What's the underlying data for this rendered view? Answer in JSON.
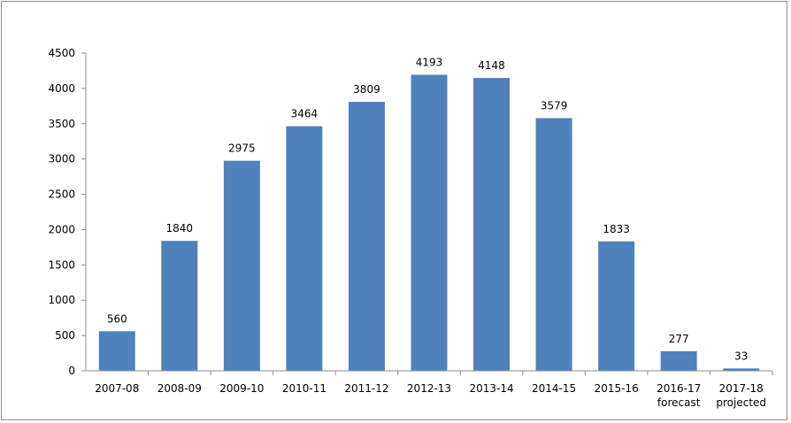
{
  "chart_data": {
    "type": "bar",
    "categories": [
      [
        "2007-08"
      ],
      [
        "2008-09"
      ],
      [
        "2009-10"
      ],
      [
        "2010-11"
      ],
      [
        "2011-12"
      ],
      [
        "2012-13"
      ],
      [
        "2013-14"
      ],
      [
        "2014-15"
      ],
      [
        "2015-16"
      ],
      [
        "2016-17",
        "forecast"
      ],
      [
        "2017-18",
        "projected"
      ]
    ],
    "values": [
      560,
      1840,
      2975,
      3464,
      3809,
      4193,
      4148,
      3579,
      1833,
      277,
      33
    ],
    "data_labels": [
      "560",
      "1840",
      "2975",
      "3464",
      "3809",
      "4193",
      "4148",
      "3579",
      "1833",
      "277",
      "33"
    ],
    "y_ticks": [
      "0",
      "500",
      "1000",
      "1500",
      "2000",
      "2500",
      "3000",
      "3500",
      "4000",
      "4500"
    ],
    "ylim": [
      0,
      4500
    ],
    "title": "",
    "xlabel": "",
    "ylabel": "",
    "grid": false,
    "legend": "none",
    "bar_color": "#4f81bd"
  }
}
